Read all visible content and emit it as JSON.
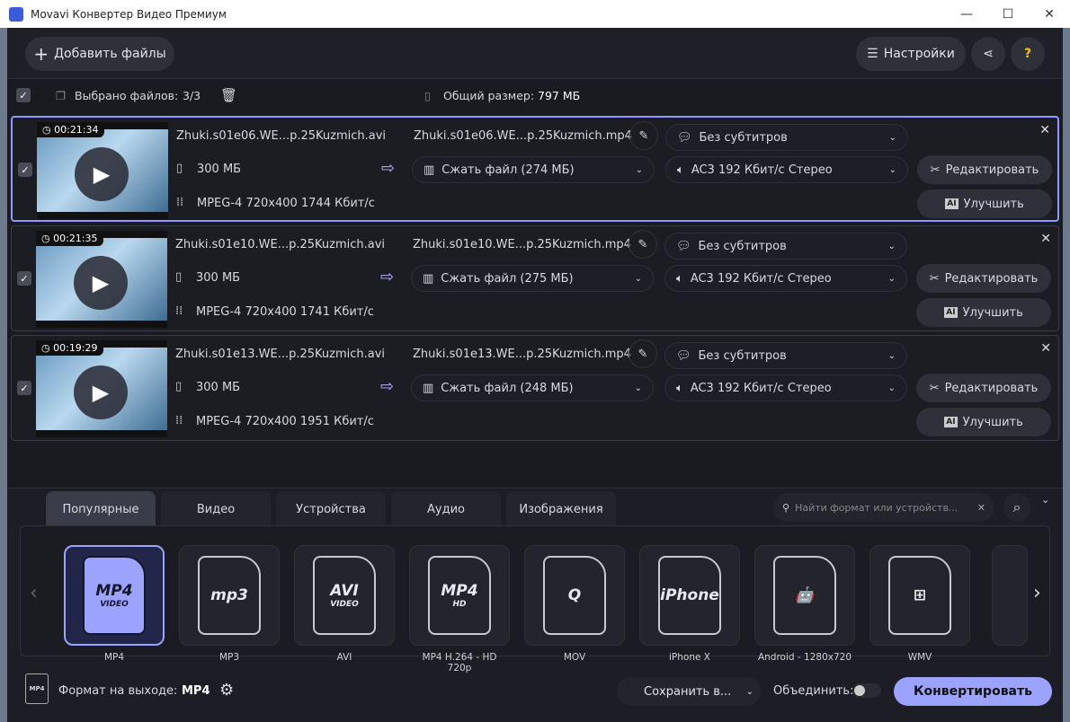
{
  "window": {
    "title": "Movavi Конвертер Видео Премиум",
    "min": "—",
    "max": "☐",
    "close": "✕"
  },
  "toolbar": {
    "add_files": "Добавить файлы",
    "settings": "Настройки",
    "help": "?"
  },
  "selection": {
    "selected_label": "Выбрано файлов:",
    "selected_value": "3/3",
    "total_label": "Общий размер:",
    "total_value": "797 МБ"
  },
  "files": [
    {
      "duration": "00:21:34",
      "source_name": "Zhuki.s01e06.WE...p.25Kuzmich.avi",
      "size": "300 МБ",
      "codec": "MPEG-4 720x400 1744 Кбит/с",
      "output_name": "Zhuki.s01e06.WE...p.25Kuzmich.mp4",
      "compress": "Сжать файл (274 МБ)",
      "subtitles": "Без субтитров",
      "audio": "AC3 192 Кбит/с Стерео",
      "edit": "Редактировать",
      "enhance": "Улучшить",
      "selected": true
    },
    {
      "duration": "00:21:35",
      "source_name": "Zhuki.s01e10.WE...p.25Kuzmich.avi",
      "size": "300 МБ",
      "codec": "MPEG-4 720x400 1741 Кбит/с",
      "output_name": "Zhuki.s01e10.WE...p.25Kuzmich.mp4",
      "compress": "Сжать файл (275 МБ)",
      "subtitles": "Без субтитров",
      "audio": "AC3 192 Кбит/с Стерео",
      "edit": "Редактировать",
      "enhance": "Улучшить",
      "selected": false
    },
    {
      "duration": "00:19:29",
      "source_name": "Zhuki.s01e13.WE...p.25Kuzmich.avi",
      "size": "300 МБ",
      "codec": "MPEG-4 720x400 1951 Кбит/с",
      "output_name": "Zhuki.s01e13.WE...p.25Kuzmich.mp4",
      "compress": "Сжать файл (248 МБ)",
      "subtitles": "Без субтитров",
      "audio": "AC3 192 Кбит/с Стерео",
      "edit": "Редактировать",
      "enhance": "Улучшить",
      "selected": false
    }
  ],
  "tabs": [
    "Популярные",
    "Видео",
    "Устройства",
    "Аудио",
    "Изображения"
  ],
  "search": {
    "placeholder": "Найти формат или устройств..."
  },
  "formats": [
    {
      "label": "MP4",
      "icon": "MP4",
      "sub": "VIDEO"
    },
    {
      "label": "MP3",
      "icon": "mp3",
      "sub": ""
    },
    {
      "label": "AVI",
      "icon": "AVI",
      "sub": "VIDEO"
    },
    {
      "label": "MP4 H.264 - HD 720p",
      "icon": "MP4",
      "sub": "HD"
    },
    {
      "label": "MOV",
      "icon": "Q",
      "sub": ""
    },
    {
      "label": "iPhone X",
      "icon": "iPhone",
      "sub": ""
    },
    {
      "label": "Android - 1280x720",
      "icon": "🤖",
      "sub": ""
    },
    {
      "label": "WMV",
      "icon": "⊞",
      "sub": ""
    }
  ],
  "footer": {
    "output_label": "Формат на выходе:",
    "output_value": "MP4",
    "save_to": "Сохранить в...",
    "merge": "Объединить:",
    "convert": "Конвертировать"
  },
  "colors": {
    "accent": "#9ba3ff",
    "background": "#1a1b21"
  }
}
